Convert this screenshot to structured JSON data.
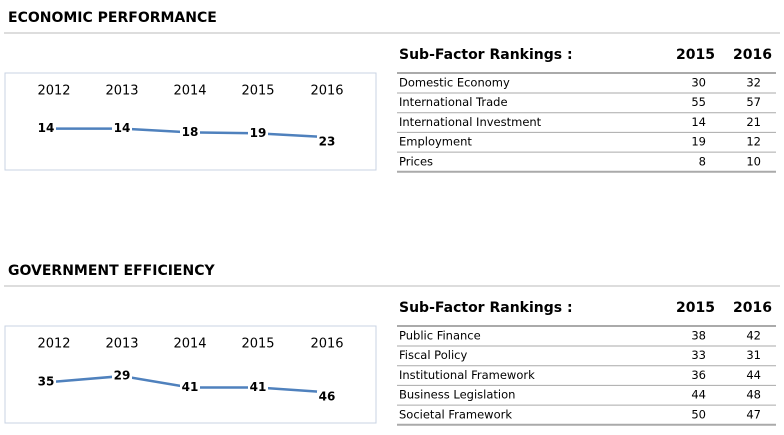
{
  "sections": [
    {
      "title": "ECONOMIC PERFORMANCE",
      "chart": {
        "type": "line",
        "categories": [
          "2012",
          "2013",
          "2014",
          "2015",
          "2016"
        ],
        "values": [
          14,
          14,
          18,
          19,
          23
        ],
        "color": "#4f81bd"
      },
      "table": {
        "header": [
          "Sub-Factor Rankings :",
          "2015",
          "2016"
        ],
        "rows": [
          [
            "Domestic Economy",
            30,
            32
          ],
          [
            "International Trade",
            55,
            57
          ],
          [
            "International Investment",
            14,
            21
          ],
          [
            "Employment",
            19,
            12
          ],
          [
            "Prices",
            8,
            10
          ]
        ]
      }
    },
    {
      "title": "GOVERNMENT EFFICIENCY",
      "chart": {
        "type": "line",
        "categories": [
          "2012",
          "2013",
          "2014",
          "2015",
          "2016"
        ],
        "values": [
          35,
          29,
          41,
          41,
          46
        ],
        "color": "#4f81bd"
      },
      "table": {
        "header": [
          "Sub-Factor Rankings :",
          "2015",
          "2016"
        ],
        "rows": [
          [
            "Public Finance",
            38,
            42
          ],
          [
            "Fiscal Policy",
            33,
            31
          ],
          [
            "Institutional Framework",
            36,
            44
          ],
          [
            "Business Legislation",
            44,
            48
          ],
          [
            "Societal Framework",
            50,
            47
          ]
        ]
      }
    }
  ]
}
